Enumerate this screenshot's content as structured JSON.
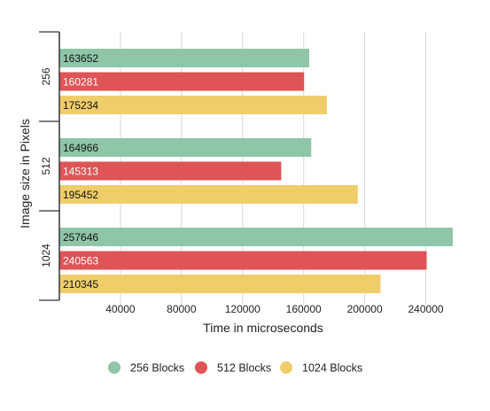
{
  "chart_data": {
    "type": "bar",
    "orientation": "horizontal",
    "categories": [
      "256",
      "512",
      "1024"
    ],
    "series": [
      {
        "name": "256 Blocks",
        "color": "#8fc6a8",
        "label_color": "#111111",
        "values": [
          163652,
          164966,
          257646
        ]
      },
      {
        "name": "512 Blocks",
        "color": "#df5456",
        "label_color": "#ffffff",
        "values": [
          160281,
          145313,
          240563
        ]
      },
      {
        "name": "1024 Blocks",
        "color": "#f0cd6b",
        "label_color": "#111111",
        "values": [
          175234,
          195452,
          210345
        ]
      }
    ],
    "xlabel": "Time in microseconds",
    "ylabel": "Image size in Pixels",
    "xlim": [
      0,
      260000
    ],
    "xticks": [
      40000,
      80000,
      120000,
      160000,
      200000,
      240000
    ],
    "xtick_labels": [
      "40000",
      "80000",
      "120000",
      "160000",
      "200000",
      "240000"
    ],
    "grid": true,
    "legend_position": "bottom"
  }
}
